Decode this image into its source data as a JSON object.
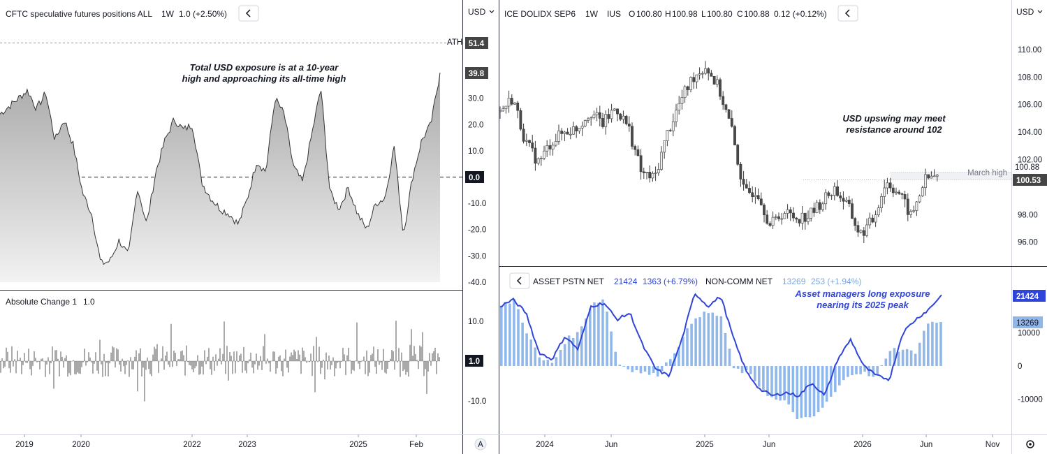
{
  "colors": {
    "up": "#f0f0f0",
    "down": "#4a4a4a",
    "wick": "#3a3a3a",
    "asset": "#3045d8",
    "noncomm": "#90b8ea",
    "axisTag": "#454545",
    "blueTag": "#2f45d9",
    "lightTag": "#93b6e8"
  },
  "left_top": {
    "title": "CFTC speculative futures positions ALL",
    "interval": "1W",
    "value": "1.0 (+2.50%)",
    "ath_label": "ATH",
    "ath_value": "51.4",
    "last_value": "39.8",
    "zero_value": "0.0",
    "annotation_1": "Total USD exposure is at a 10-year",
    "annotation_2": "high and approaching its all-time high"
  },
  "left_bottom": {
    "title": "Absolute Change 1",
    "value": "1.0",
    "last_value": "1.0"
  },
  "left_xaxis": [
    "2019",
    "2020",
    "2022",
    "2023",
    "2025",
    "Feb"
  ],
  "right_top": {
    "symbol": "ICE DOLIDX SEP6",
    "interval": "1W",
    "exchange": "IUS",
    "o_label": "O",
    "o_value": "100.80",
    "h_label": "H",
    "h_value": "100.98",
    "l_label": "L",
    "l_value": "100.80",
    "c_label": "C",
    "c_value": "100.88",
    "change": "0.12 (+0.12%)",
    "price_tag": "100.88",
    "march_high_tag": "100.53",
    "march_high_label": "March high",
    "annotation_1": "USD upswing may meet",
    "annotation_2": "resistance around 102"
  },
  "right_bottom": {
    "asset_label": "ASSET PSTN NET",
    "asset_value": "21424",
    "asset_change": "1363 (+6.79%)",
    "noncomm_label": "NON-COMM NET",
    "noncomm_value": "13269",
    "noncomm_change": "253 (+1.94%)",
    "asset_tag": "21424",
    "noncomm_tag": "13269",
    "annotation_1": "Asset managers long exposure",
    "annotation_2": "nearing its 2025 peak"
  },
  "right_xaxis": [
    "2024",
    "Jun",
    "2025",
    "Jun",
    "2026",
    "Jun",
    "Nov"
  ],
  "currency_left": "USD",
  "currency_right": "USD",
  "auto_label": "A",
  "chart_data": [
    {
      "type": "area",
      "title": "CFTC speculative futures positions ALL",
      "xlabel": "",
      "ylabel": "",
      "ylim": [
        -42,
        55
      ],
      "yticks": [
        30.0,
        20.0,
        10.0,
        -10.0,
        -20.0,
        -30.0,
        -40.0
      ],
      "x": [
        "2018-06",
        "2018-08",
        "2018-10",
        "2018-12",
        "2019-02",
        "2019-04",
        "2019-06",
        "2019-08",
        "2019-10",
        "2019-12",
        "2020-02",
        "2020-04",
        "2020-06",
        "2020-08",
        "2020-10",
        "2020-12",
        "2021-02",
        "2021-04",
        "2021-06",
        "2021-08",
        "2021-10",
        "2021-12",
        "2022-02",
        "2022-04",
        "2022-06",
        "2022-08",
        "2022-10",
        "2022-12",
        "2023-02",
        "2023-04",
        "2023-06",
        "2023-08",
        "2023-10",
        "2023-12",
        "2024-02",
        "2024-04",
        "2024-06",
        "2024-08",
        "2024-10",
        "2024-12",
        "2025-02",
        "2025-04",
        "2025-06",
        "2025-08",
        "2025-10",
        "2025-12",
        "2026-02",
        "2026-04",
        "2026-06"
      ],
      "values": [
        24,
        27,
        30,
        33,
        26,
        32,
        14,
        22,
        12,
        -6,
        -14,
        -33,
        -32,
        -24,
        -30,
        -4,
        -18,
        2,
        14,
        22,
        18,
        20,
        -2,
        -8,
        -12,
        -14,
        -18,
        -8,
        6,
        2,
        30,
        24,
        4,
        -2,
        16,
        34,
        -6,
        -12,
        -4,
        -14,
        -20,
        -10,
        -8,
        12,
        -22,
        0,
        14,
        20,
        39.8
      ],
      "ath": 51.4
    },
    {
      "type": "bar",
      "title": "Absolute Change 1",
      "ylim": [
        -15,
        15
      ],
      "yticks": [
        10.0,
        -10.0
      ],
      "last": 1.0
    },
    {
      "type": "candlestick",
      "title": "ICE DOLIDX SEP6",
      "ylim": [
        94,
        111
      ],
      "yticks": [
        110.0,
        108.0,
        106.0,
        104.0,
        102.0,
        98.0,
        96.0
      ],
      "x": [
        "2023-09",
        "2023-10",
        "2023-11",
        "2023-12",
        "2024-01",
        "2024-02",
        "2024-03",
        "2024-04",
        "2024-05",
        "2024-06",
        "2024-07",
        "2024-08",
        "2024-09",
        "2024-10",
        "2024-11",
        "2024-12",
        "2025-01",
        "2025-02",
        "2025-03",
        "2025-04",
        "2025-05",
        "2025-06",
        "2025-07",
        "2025-08",
        "2025-09",
        "2025-10",
        "2025-11",
        "2025-12",
        "2026-01",
        "2026-02",
        "2026-03",
        "2026-04",
        "2026-05",
        "2026-06",
        "2026-07"
      ],
      "close": [
        105.5,
        106.5,
        103.2,
        101.8,
        103.3,
        104.0,
        104.3,
        105.5,
        104.6,
        105.8,
        104.3,
        101.0,
        100.6,
        103.9,
        106.2,
        108.0,
        108.8,
        107.2,
        104.2,
        99.5,
        99.8,
        97.2,
        98.2,
        97.8,
        97.9,
        98.9,
        99.9,
        98.7,
        96.5,
        97.6,
        100.4,
        99.6,
        97.8,
        100.5,
        100.88
      ],
      "march_high": 100.53,
      "last": 100.88
    },
    {
      "type": "line+bar",
      "series": [
        {
          "name": "ASSET PSTN NET",
          "kind": "line",
          "x": [
            "2023-09",
            "2023-10",
            "2023-11",
            "2023-12",
            "2024-01",
            "2024-02",
            "2024-03",
            "2024-04",
            "2024-05",
            "2024-06",
            "2024-07",
            "2024-08",
            "2024-09",
            "2024-10",
            "2024-11",
            "2024-12",
            "2025-01",
            "2025-02",
            "2025-03",
            "2025-04",
            "2025-05",
            "2025-06",
            "2025-07",
            "2025-08",
            "2025-09",
            "2025-10",
            "2025-11",
            "2025-12",
            "2026-01",
            "2026-02",
            "2026-03",
            "2026-04",
            "2026-05",
            "2026-06",
            "2026-07"
          ],
          "values": [
            18000,
            20000,
            16000,
            4000,
            2000,
            9000,
            5000,
            18000,
            19000,
            14000,
            16000,
            6000,
            -1000,
            -3000,
            8000,
            22000,
            18000,
            21000,
            8000,
            -2000,
            -7000,
            -9000,
            -8000,
            -9000,
            -5000,
            -9000,
            2000,
            8000,
            0,
            -3000,
            -4000,
            10000,
            14000,
            17000,
            21424
          ],
          "last": 21424
        },
        {
          "name": "NON-COMM NET",
          "kind": "bar",
          "x": [
            "2023-09",
            "2023-10",
            "2023-11",
            "2023-12",
            "2024-01",
            "2024-02",
            "2024-03",
            "2024-04",
            "2024-05",
            "2024-06",
            "2024-07",
            "2024-08",
            "2024-09",
            "2024-10",
            "2024-11",
            "2024-12",
            "2025-01",
            "2025-02",
            "2025-03",
            "2025-04",
            "2025-05",
            "2025-06",
            "2025-07",
            "2025-08",
            "2025-09",
            "2025-10",
            "2025-11",
            "2025-12",
            "2026-01",
            "2026-02",
            "2026-03",
            "2026-04",
            "2026-05",
            "2026-06",
            "2026-07"
          ],
          "values": [
            18000,
            20000,
            10000,
            2000,
            1000,
            8000,
            10000,
            19000,
            20000,
            1000,
            -1000,
            -2000,
            -3000,
            2000,
            8000,
            15000,
            16000,
            15000,
            -1000,
            -2000,
            -6000,
            -10000,
            -11000,
            -16000,
            -16000,
            -12000,
            -7000,
            -2000,
            -2000,
            -4000,
            5000,
            5000,
            4000,
            13000,
            13269
          ],
          "last": 13269
        }
      ],
      "ylim": [
        -17000,
        26000
      ],
      "yticks": [
        10000,
        0,
        -10000
      ]
    }
  ]
}
